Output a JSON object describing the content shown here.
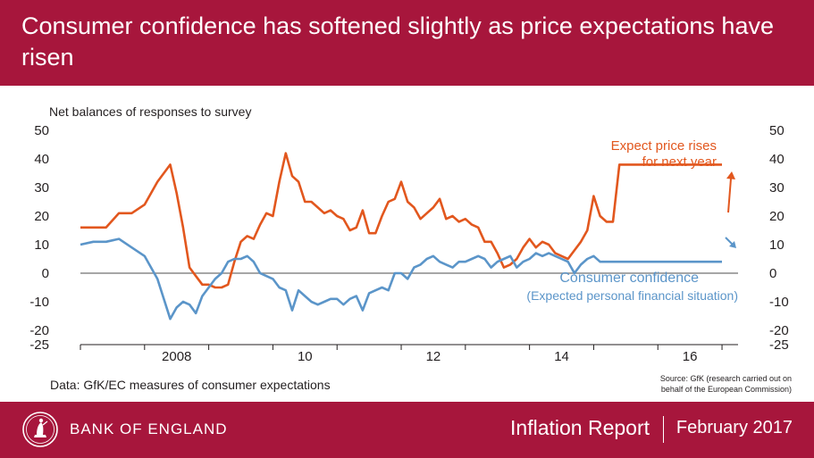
{
  "header": {
    "title": "Consumer confidence has softened slightly as price expectations have risen"
  },
  "colors": {
    "brand": "#a7163c",
    "price_series": "#e2571e",
    "confidence_series": "#5b95c9",
    "axis_text": "#231f20",
    "zero_line": "#888888"
  },
  "chart_data": {
    "type": "line",
    "ylabel": "Net balances of responses to survey",
    "ylim": [
      -25,
      50
    ],
    "yticks": [
      50,
      40,
      30,
      20,
      10,
      0,
      -10,
      -20,
      -25
    ],
    "xlim": [
      2007.0,
      2017.25
    ],
    "xticks": [
      2007,
      2008,
      2009,
      2010,
      2011,
      2012,
      2013,
      2014,
      2015,
      2016,
      2017
    ],
    "xtick_labels": [
      {
        "x": 2008,
        "label": "2008"
      },
      {
        "x": 2010,
        "label": "10"
      },
      {
        "x": 2012,
        "label": "12"
      },
      {
        "x": 2014,
        "label": "14"
      },
      {
        "x": 2016,
        "label": "16"
      }
    ],
    "grid": false,
    "series": [
      {
        "key": "price",
        "label_lines": [
          "Expect price rises",
          "for next year"
        ],
        "x": [
          2007.0,
          2007.2,
          2007.4,
          2007.6,
          2007.8,
          2008.0,
          2008.2,
          2008.4,
          2008.5,
          2008.6,
          2008.7,
          2008.8,
          2008.9,
          2009.0,
          2009.1,
          2009.2,
          2009.3,
          2009.4,
          2009.5,
          2009.6,
          2009.7,
          2009.8,
          2009.9,
          2010.0,
          2010.1,
          2010.2,
          2010.3,
          2010.4,
          2010.5,
          2010.6,
          2010.7,
          2010.8,
          2010.9,
          2011.0,
          2011.1,
          2011.2,
          2011.3,
          2011.4,
          2011.5,
          2011.6,
          2011.7,
          2011.8,
          2011.9,
          2012.0,
          2012.1,
          2012.2,
          2012.3,
          2012.4,
          2012.5,
          2012.6,
          2012.7,
          2012.8,
          2012.9,
          2013.0,
          2013.1,
          2013.2,
          2013.3,
          2013.4,
          2013.5,
          2013.6,
          2013.7,
          2013.8,
          2013.9,
          2014.0,
          2014.1,
          2014.2,
          2014.3,
          2014.4,
          2014.5,
          2014.6,
          2014.7,
          2014.8,
          2014.9,
          2015.0,
          2015.1,
          2015.2,
          2015.3,
          2015.4,
          2015.5,
          2015.6,
          2015.7,
          2015.8,
          2015.9,
          2016.0,
          2016.1,
          2016.2,
          2016.3,
          2016.4,
          2016.5,
          2016.6,
          2016.7,
          2016.8,
          2016.9,
          2017.0
        ],
        "values": [
          16,
          16,
          16,
          21,
          21,
          24,
          32,
          38,
          28,
          16,
          2,
          -1,
          -4,
          -4,
          -5,
          -5,
          -4,
          4,
          11,
          13,
          12,
          17,
          21,
          20,
          32,
          42,
          34,
          32,
          25,
          25,
          23,
          21,
          22,
          20,
          19,
          15,
          16,
          22,
          14,
          14,
          20,
          25,
          26,
          32,
          25,
          23,
          19,
          21,
          23,
          26,
          19,
          20,
          18,
          19,
          17,
          16,
          11,
          11,
          7,
          2,
          3,
          5,
          9,
          12,
          9,
          11,
          10,
          7,
          6,
          5,
          8,
          11,
          15,
          27,
          20,
          18,
          18,
          38,
          38,
          38,
          38,
          38,
          38,
          38,
          38,
          38,
          38,
          38,
          38,
          38,
          38,
          38,
          38,
          38
        ]
      },
      {
        "key": "confidence",
        "label_lines": [
          "Consumer confidence",
          "(Expected personal financial situation)"
        ],
        "x": [
          2007.0,
          2007.2,
          2007.4,
          2007.6,
          2007.8,
          2008.0,
          2008.2,
          2008.4,
          2008.5,
          2008.6,
          2008.7,
          2008.8,
          2008.9,
          2009.0,
          2009.1,
          2009.2,
          2009.3,
          2009.4,
          2009.5,
          2009.6,
          2009.7,
          2009.8,
          2009.9,
          2010.0,
          2010.1,
          2010.2,
          2010.3,
          2010.4,
          2010.5,
          2010.6,
          2010.7,
          2010.8,
          2010.9,
          2011.0,
          2011.1,
          2011.2,
          2011.3,
          2011.4,
          2011.5,
          2011.6,
          2011.7,
          2011.8,
          2011.9,
          2012.0,
          2012.1,
          2012.2,
          2012.3,
          2012.4,
          2012.5,
          2012.6,
          2012.7,
          2012.8,
          2012.9,
          2013.0,
          2013.1,
          2013.2,
          2013.3,
          2013.4,
          2013.5,
          2013.6,
          2013.7,
          2013.8,
          2013.9,
          2014.0,
          2014.1,
          2014.2,
          2014.3,
          2014.4,
          2014.5,
          2014.6,
          2014.7,
          2014.8,
          2014.9,
          2015.0,
          2015.1,
          2015.2,
          2015.3,
          2015.4,
          2015.5,
          2015.6,
          2015.7,
          2015.8,
          2015.9,
          2016.0,
          2016.1,
          2016.2,
          2016.3,
          2016.4,
          2016.5,
          2016.6,
          2016.7,
          2016.8,
          2016.9,
          2017.0
        ],
        "values": [
          10,
          11,
          11,
          12,
          9,
          6,
          -2,
          -16,
          -12,
          -10,
          -11,
          -14,
          -8,
          -5,
          -2,
          0,
          4,
          5,
          5,
          6,
          4,
          0,
          -1,
          -2,
          -5,
          -6,
          -13,
          -6,
          -8,
          -10,
          -11,
          -10,
          -9,
          -9,
          -11,
          -9,
          -8,
          -13,
          -7,
          -6,
          -5,
          -6,
          0,
          0,
          -2,
          2,
          3,
          5,
          6,
          4,
          3,
          2,
          4,
          4,
          5,
          6,
          5,
          2,
          4,
          5,
          6,
          2,
          4,
          5,
          7,
          6,
          7,
          6,
          5,
          4,
          0,
          3,
          5,
          6,
          4,
          4,
          4,
          4,
          4,
          4,
          4,
          4,
          4,
          4,
          4,
          4,
          4,
          4,
          4,
          4,
          4,
          4,
          4,
          4
        ]
      }
    ],
    "data_note": "Data:  GfK/EC measures of consumer expectations",
    "source_lines": [
      "Source:  GfK (research carried out on",
      "behalf of the European Commission)"
    ]
  },
  "footer": {
    "logo_text": "BANK OF ENGLAND",
    "report_name": "Inflation Report",
    "report_date": "February 2017"
  }
}
